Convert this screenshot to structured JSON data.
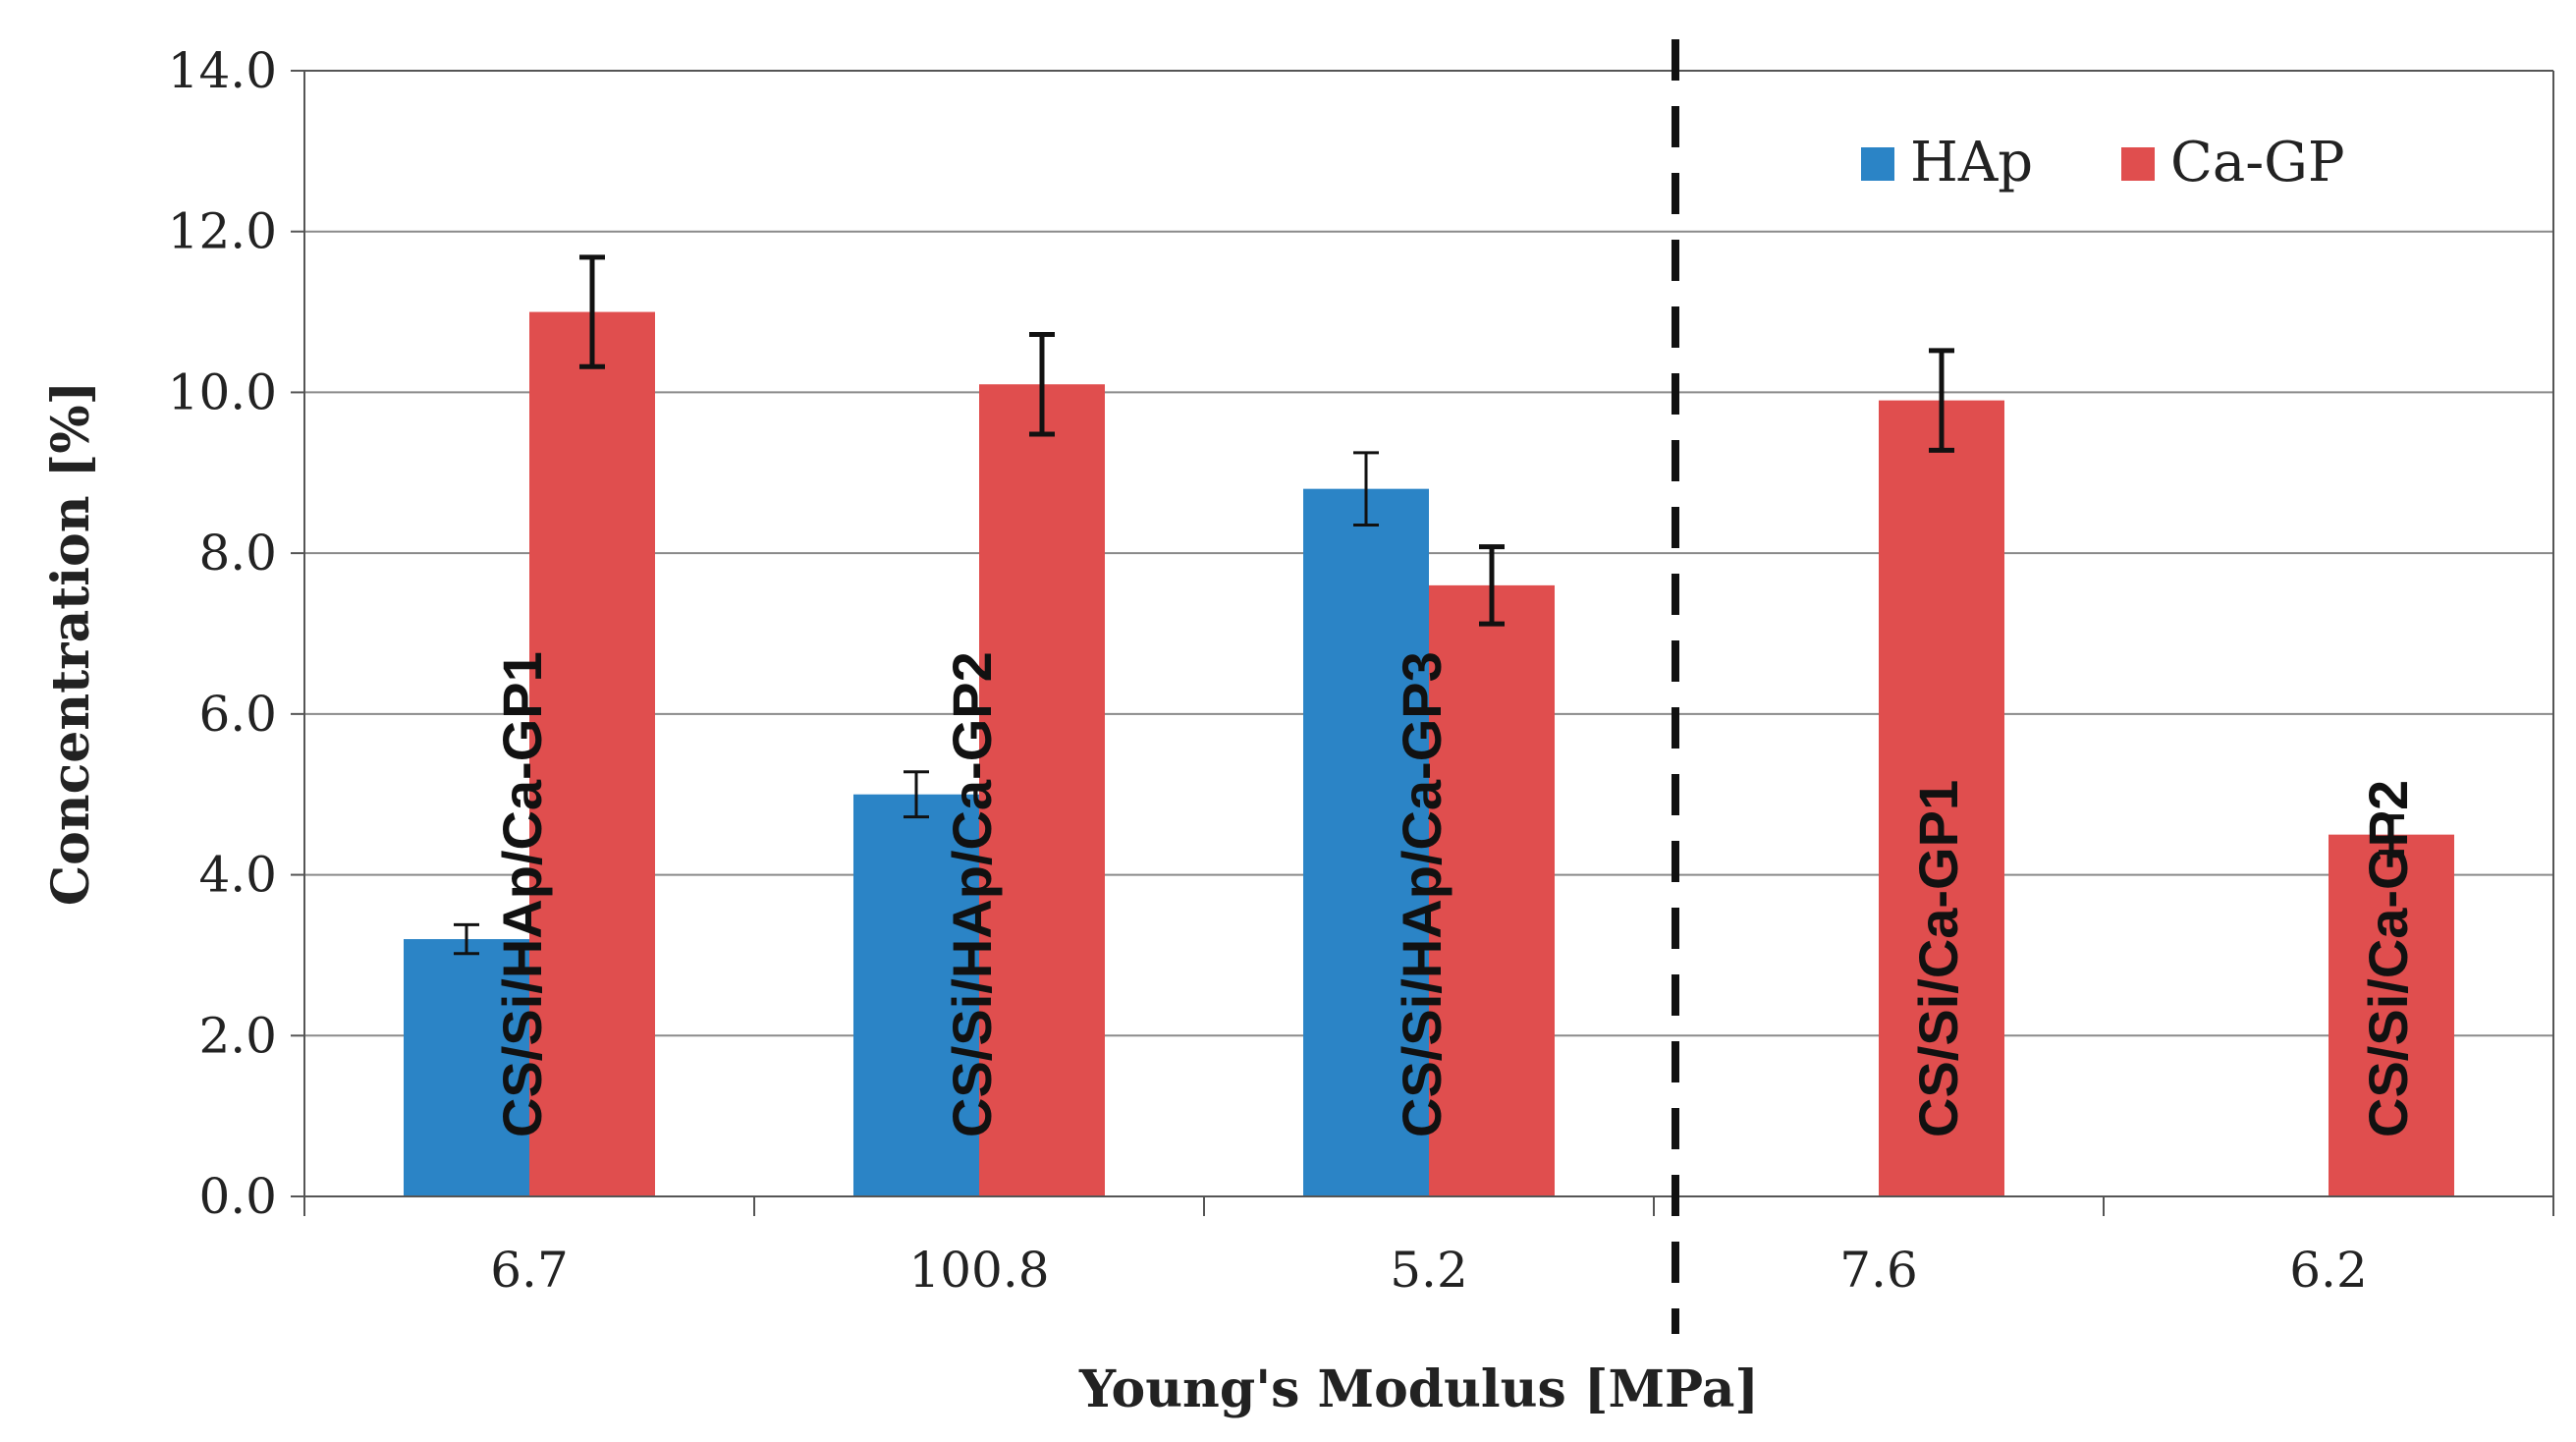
{
  "chart_data": {
    "type": "bar",
    "categories": [
      "6.7",
      "100.8",
      "5.2",
      "7.6",
      "6.2"
    ],
    "series": [
      {
        "name": "HAp",
        "color": "#2b84c6",
        "values": [
          3.2,
          5.0,
          8.8,
          null,
          null
        ],
        "errors": [
          0.18,
          0.28,
          0.45,
          null,
          null
        ]
      },
      {
        "name": "Ca-GP",
        "color": "#e04e4e",
        "values": [
          11.0,
          10.1,
          7.6,
          9.9,
          4.5
        ],
        "errors": [
          0.68,
          0.62,
          0.48,
          0.62,
          0.22
        ]
      }
    ],
    "bar_labels": [
      "CS/Si/HAp/Ca-GP1",
      "CS/Si/HAp/Ca-GP2",
      "CS/Si/HAp/Ca-GP3",
      "CS/Si/Ca-GP1",
      "CS/Si/Ca-GP2"
    ],
    "xlabel": "Young's Modulus [MPa]",
    "ylabel": "Concentration [%]",
    "ylim": [
      0,
      14
    ],
    "yticks": [
      "0.0",
      "2.0",
      "4.0",
      "6.0",
      "8.0",
      "10.0",
      "12.0",
      "14.0"
    ],
    "grid": true,
    "legend_position": "top-right",
    "separator_after_category": 3
  }
}
